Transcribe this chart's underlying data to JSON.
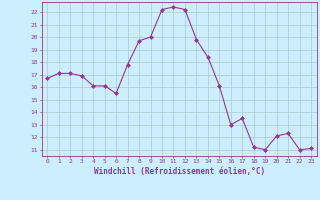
{
  "x": [
    0,
    1,
    2,
    3,
    4,
    5,
    6,
    7,
    8,
    9,
    10,
    11,
    12,
    13,
    14,
    15,
    16,
    17,
    18,
    19,
    20,
    21,
    22,
    23
  ],
  "y": [
    16.7,
    17.1,
    17.1,
    16.9,
    16.1,
    16.1,
    15.5,
    17.8,
    19.7,
    20.0,
    22.2,
    22.4,
    22.2,
    19.8,
    18.4,
    16.1,
    13.0,
    13.5,
    11.2,
    11.0,
    12.1,
    12.3,
    11.0,
    11.1
  ],
  "line_color": "#993399",
  "marker": "D",
  "marker_size": 2,
  "bg_color": "#cceeff",
  "grid_color": "#aacccc",
  "xlabel": "Windchill (Refroidissement éolien,°C)",
  "xlabel_color": "#993399",
  "tick_color": "#993399",
  "ylim": [
    10.5,
    22.8
  ],
  "xlim": [
    -0.5,
    23.5
  ],
  "yticks": [
    11,
    12,
    13,
    14,
    15,
    16,
    17,
    18,
    19,
    20,
    21,
    22
  ],
  "xticks": [
    0,
    1,
    2,
    3,
    4,
    5,
    6,
    7,
    8,
    9,
    10,
    11,
    12,
    13,
    14,
    15,
    16,
    17,
    18,
    19,
    20,
    21,
    22,
    23
  ]
}
